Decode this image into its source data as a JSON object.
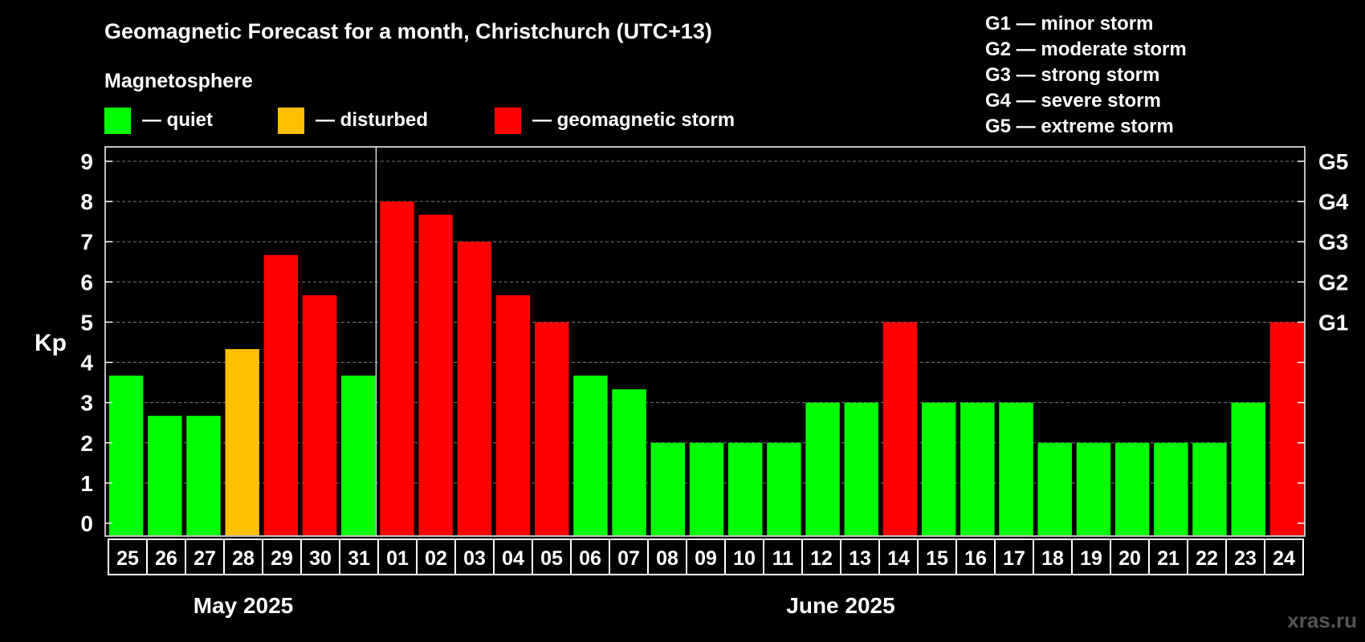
{
  "chart_data": {
    "type": "bar",
    "title": "Geomagnetic Forecast for a month, Christchurch (UTC+13)",
    "ylabel": "Kp",
    "ylim": [
      0,
      9
    ],
    "yticks": [
      "0",
      "1",
      "2",
      "3",
      "4",
      "5",
      "6",
      "7",
      "8",
      "9"
    ],
    "right_axis_labels": [
      {
        "value": 5,
        "label": "G1"
      },
      {
        "value": 6,
        "label": "G2"
      },
      {
        "value": 7,
        "label": "G3"
      },
      {
        "value": 8,
        "label": "G4"
      },
      {
        "value": 9,
        "label": "G5"
      }
    ],
    "legend": {
      "heading": "Magnetosphere",
      "items": [
        {
          "label": "— quiet",
          "color": "#00ff00"
        },
        {
          "label": "— disturbed",
          "color": "#ffc000"
        },
        {
          "label": "— geomagnetic storm",
          "color": "#ff0000"
        }
      ]
    },
    "storm_scale": [
      "G1 — minor storm",
      "G2 — moderate storm",
      "G3 — strong storm",
      "G4 — severe storm",
      "G5 — extreme storm"
    ],
    "categories": [
      "25",
      "26",
      "27",
      "28",
      "29",
      "30",
      "31",
      "01",
      "02",
      "03",
      "04",
      "05",
      "06",
      "07",
      "08",
      "09",
      "10",
      "11",
      "12",
      "13",
      "14",
      "15",
      "16",
      "17",
      "18",
      "19",
      "20",
      "21",
      "22",
      "23",
      "24"
    ],
    "values": [
      3.67,
      2.67,
      2.67,
      4.33,
      6.67,
      5.67,
      3.67,
      8,
      7.67,
      7,
      5.67,
      5,
      3.67,
      3.33,
      2,
      2,
      2,
      2,
      3,
      3,
      5,
      3,
      3,
      3,
      2,
      2,
      2,
      2,
      2,
      3,
      5
    ],
    "status": [
      "quiet",
      "quiet",
      "quiet",
      "disturbed",
      "storm",
      "storm",
      "quiet",
      "storm",
      "storm",
      "storm",
      "storm",
      "storm",
      "quiet",
      "quiet",
      "quiet",
      "quiet",
      "quiet",
      "quiet",
      "quiet",
      "quiet",
      "storm",
      "quiet",
      "quiet",
      "quiet",
      "quiet",
      "quiet",
      "quiet",
      "quiet",
      "quiet",
      "quiet",
      "storm"
    ],
    "month_groups": [
      {
        "label": "May 2025",
        "count": 7
      },
      {
        "label": "June 2025",
        "count": 24
      }
    ],
    "status_colors": {
      "quiet": "#00ff00",
      "disturbed": "#ffc000",
      "storm": "#ff0000"
    },
    "grid": true
  },
  "watermark": "xras.ru"
}
